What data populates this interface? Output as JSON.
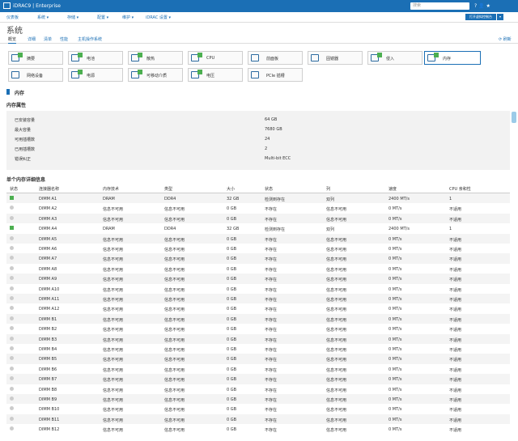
{
  "header": {
    "brand": "iDRAC9",
    "edition": "Enterprise",
    "search": "搜索"
  },
  "nav": {
    "items": [
      "仪表板",
      "系统",
      "存储",
      "配置",
      "维护",
      "iDRAC 设置"
    ],
    "console_button": "打开虚拟控制台"
  },
  "page": {
    "title": "系统",
    "tabs": [
      "概览",
      "详细",
      "清单",
      "性能",
      "主机操作系统"
    ],
    "refresh": "刷新"
  },
  "tiles": [
    "摘要",
    "电池",
    "散热",
    "CPU",
    "前面板",
    "固镜器",
    "侵入",
    "内存",
    "网络设备",
    "电源",
    "可移动介质",
    "电压",
    "PCIe 插槽"
  ],
  "section": "内存",
  "properties": {
    "title": "内存属性",
    "rows": [
      [
        "已安装容量",
        "64 GB"
      ],
      [
        "最大容量",
        "7680 GB"
      ],
      [
        "可用插槽数",
        "24"
      ],
      [
        "已用插槽数",
        "2"
      ],
      [
        "错误纠正",
        "Multi-bit ECC"
      ]
    ]
  },
  "details": {
    "title": "单个内存详细信息",
    "columns": [
      "状态",
      "连接器名称",
      "内存技术",
      "类型",
      "大小",
      "状态",
      "列",
      "速度",
      "CPU 亲和性"
    ],
    "status_icons": [
      "ok",
      "none",
      "none",
      "ok",
      "none",
      "none",
      "none",
      "none",
      "none",
      "none",
      "none",
      "none",
      "none",
      "none",
      "none",
      "none",
      "none",
      "none",
      "none",
      "none",
      "none",
      "none",
      "none",
      "none"
    ],
    "rows": [
      [
        "DIMM A1",
        "DRAM",
        "DDR4",
        "32 GB",
        "检测到存在",
        "双列",
        "2400 MT/s",
        "1"
      ],
      [
        "DIMM A2",
        "信息不可用",
        "信息不可用",
        "0 GB",
        "不存在",
        "信息不可用",
        "0 MT/s",
        "不适用"
      ],
      [
        "DIMM A3",
        "信息不可用",
        "信息不可用",
        "0 GB",
        "不存在",
        "信息不可用",
        "0 MT/s",
        "不适用"
      ],
      [
        "DIMM A4",
        "DRAM",
        "DDR4",
        "32 GB",
        "检测到存在",
        "双列",
        "2400 MT/s",
        "1"
      ],
      [
        "DIMM A5",
        "信息不可用",
        "信息不可用",
        "0 GB",
        "不存在",
        "信息不可用",
        "0 MT/s",
        "不适用"
      ],
      [
        "DIMM A6",
        "信息不可用",
        "信息不可用",
        "0 GB",
        "不存在",
        "信息不可用",
        "0 MT/s",
        "不适用"
      ],
      [
        "DIMM A7",
        "信息不可用",
        "信息不可用",
        "0 GB",
        "不存在",
        "信息不可用",
        "0 MT/s",
        "不适用"
      ],
      [
        "DIMM A8",
        "信息不可用",
        "信息不可用",
        "0 GB",
        "不存在",
        "信息不可用",
        "0 MT/s",
        "不适用"
      ],
      [
        "DIMM A9",
        "信息不可用",
        "信息不可用",
        "0 GB",
        "不存在",
        "信息不可用",
        "0 MT/s",
        "不适用"
      ],
      [
        "DIMM A10",
        "信息不可用",
        "信息不可用",
        "0 GB",
        "不存在",
        "信息不可用",
        "0 MT/s",
        "不适用"
      ],
      [
        "DIMM A11",
        "信息不可用",
        "信息不可用",
        "0 GB",
        "不存在",
        "信息不可用",
        "0 MT/s",
        "不适用"
      ],
      [
        "DIMM A12",
        "信息不可用",
        "信息不可用",
        "0 GB",
        "不存在",
        "信息不可用",
        "0 MT/s",
        "不适用"
      ],
      [
        "DIMM B1",
        "信息不可用",
        "信息不可用",
        "0 GB",
        "不存在",
        "信息不可用",
        "0 MT/s",
        "不适用"
      ],
      [
        "DIMM B2",
        "信息不可用",
        "信息不可用",
        "0 GB",
        "不存在",
        "信息不可用",
        "0 MT/s",
        "不适用"
      ],
      [
        "DIMM B3",
        "信息不可用",
        "信息不可用",
        "0 GB",
        "不存在",
        "信息不可用",
        "0 MT/s",
        "不适用"
      ],
      [
        "DIMM B4",
        "信息不可用",
        "信息不可用",
        "0 GB",
        "不存在",
        "信息不可用",
        "0 MT/s",
        "不适用"
      ],
      [
        "DIMM B5",
        "信息不可用",
        "信息不可用",
        "0 GB",
        "不存在",
        "信息不可用",
        "0 MT/s",
        "不适用"
      ],
      [
        "DIMM B6",
        "信息不可用",
        "信息不可用",
        "0 GB",
        "不存在",
        "信息不可用",
        "0 MT/s",
        "不适用"
      ],
      [
        "DIMM B7",
        "信息不可用",
        "信息不可用",
        "0 GB",
        "不存在",
        "信息不可用",
        "0 MT/s",
        "不适用"
      ],
      [
        "DIMM B8",
        "信息不可用",
        "信息不可用",
        "0 GB",
        "不存在",
        "信息不可用",
        "0 MT/s",
        "不适用"
      ],
      [
        "DIMM B9",
        "信息不可用",
        "信息不可用",
        "0 GB",
        "不存在",
        "信息不可用",
        "0 MT/s",
        "不适用"
      ],
      [
        "DIMM B10",
        "信息不可用",
        "信息不可用",
        "0 GB",
        "不存在",
        "信息不可用",
        "0 MT/s",
        "不适用"
      ],
      [
        "DIMM B11",
        "信息不可用",
        "信息不可用",
        "0 GB",
        "不存在",
        "信息不可用",
        "0 MT/s",
        "不适用"
      ],
      [
        "DIMM B12",
        "信息不可用",
        "信息不可用",
        "0 GB",
        "不存在",
        "信息不可用",
        "0 MT/s",
        "不适用"
      ]
    ]
  }
}
